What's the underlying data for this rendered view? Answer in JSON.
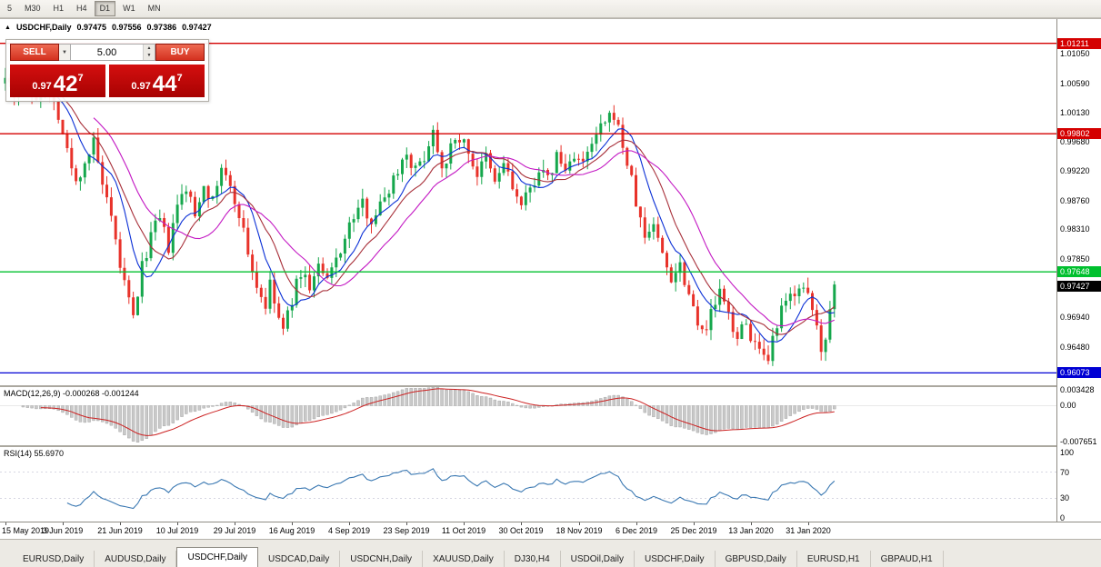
{
  "toolbar": {
    "periods": [
      {
        "label": "5",
        "active": false
      },
      {
        "label": "M30",
        "active": false
      },
      {
        "label": "H1",
        "active": false
      },
      {
        "label": "H4",
        "active": false
      },
      {
        "label": "D1",
        "active": true
      },
      {
        "label": "W1",
        "active": false
      },
      {
        "label": "MN",
        "active": false
      }
    ]
  },
  "chart": {
    "header": {
      "collapse_icon": "▲",
      "symbol": "USDCHF,Daily",
      "open": "0.97475",
      "high": "0.97556",
      "low": "0.97386",
      "close": "0.97427"
    }
  },
  "trade": {
    "sell_label": "SELL",
    "buy_label": "BUY",
    "volume": "5.00",
    "sell_price": {
      "prefix": "0.97",
      "big": "42",
      "sup": "7"
    },
    "buy_price": {
      "prefix": "0.97",
      "big": "44",
      "sup": "7"
    }
  },
  "indicators": {
    "macd": {
      "label": "MACD(12,26,9) -0.000268 -0.001244",
      "ticks": [
        {
          "v": 0.003428,
          "label": "0.003428"
        },
        {
          "v": 0,
          "label": "0.00"
        },
        {
          "v": -0.007651,
          "label": "-0.007651"
        }
      ]
    },
    "rsi": {
      "label": "RSI(14) 55.6970",
      "ticks": [
        {
          "v": 100,
          "label": "100"
        },
        {
          "v": 70,
          "label": "70"
        },
        {
          "v": 30,
          "label": "30"
        },
        {
          "v": 0,
          "label": "0"
        }
      ],
      "levels": [
        70,
        30
      ]
    }
  },
  "chart_data": {
    "type": "candlestick",
    "symbol": "USDCHF",
    "timeframe": "Daily",
    "ohlc_current": {
      "open": 0.97475,
      "high": 0.97556,
      "low": 0.97386,
      "close": 0.97427
    },
    "price_top": 1.0159,
    "price_bottom": 0.9588,
    "num_candles": 189,
    "bars_per_label": 13,
    "seed": 7,
    "x_labels": [
      "15 May 2019",
      "3 Jun 2019",
      "21 Jun 2019",
      "10 Jul 2019",
      "29 Jul 2019",
      "16 Aug 2019",
      "4 Sep 2019",
      "23 Sep 2019",
      "11 Oct 2019",
      "30 Oct 2019",
      "18 Nov 2019",
      "6 Dec 2019",
      "25 Dec 2019",
      "13 Jan 2020",
      "31 Jan 2020"
    ],
    "y_ticks": [
      {
        "v": 1.0105,
        "label": "1.01050"
      },
      {
        "v": 1.0059,
        "label": "1.00590"
      },
      {
        "v": 1.0013,
        "label": "1.00130"
      },
      {
        "v": 0.9968,
        "label": "0.99680"
      },
      {
        "v": 0.9922,
        "label": "0.99220"
      },
      {
        "v": 0.9876,
        "label": "0.98760"
      },
      {
        "v": 0.9831,
        "label": "0.98310"
      },
      {
        "v": 0.9785,
        "label": "0.97850"
      },
      {
        "v": 0.9694,
        "label": "0.96940"
      },
      {
        "v": 0.9648,
        "label": "0.96480"
      }
    ],
    "hlines": [
      {
        "value": 1.01211,
        "label": "1.01211",
        "color": "#d40000"
      },
      {
        "value": 0.99802,
        "label": "0.99802",
        "color": "#d40000"
      },
      {
        "value": 0.97648,
        "label": "0.97648",
        "color": "#00c02e"
      },
      {
        "value": 0.96073,
        "label": "0.96073",
        "color": "#0000d4"
      }
    ],
    "current_price": {
      "value": 0.97427,
      "label": "0.97427",
      "color": "#000000"
    },
    "anchors": [
      [
        0,
        1.0078
      ],
      [
        2,
        1.0042
      ],
      [
        4,
        1.0066
      ],
      [
        6,
        1.003
      ],
      [
        9,
        1.0058
      ],
      [
        12,
        1.0012
      ],
      [
        14,
        0.9952
      ],
      [
        16,
        0.9902
      ],
      [
        18,
        0.9938
      ],
      [
        20,
        0.9965
      ],
      [
        22,
        0.99
      ],
      [
        24,
        0.9842
      ],
      [
        26,
        0.9775
      ],
      [
        28,
        0.9718
      ],
      [
        29,
        0.9692
      ],
      [
        31,
        0.9772
      ],
      [
        33,
        0.9822
      ],
      [
        35,
        0.9846
      ],
      [
        37,
        0.9802
      ],
      [
        39,
        0.9866
      ],
      [
        41,
        0.9896
      ],
      [
        43,
        0.9852
      ],
      [
        45,
        0.9906
      ],
      [
        47,
        0.9872
      ],
      [
        49,
        0.993
      ],
      [
        51,
        0.9892
      ],
      [
        53,
        0.9858
      ],
      [
        55,
        0.9795
      ],
      [
        57,
        0.9742
      ],
      [
        59,
        0.9712
      ],
      [
        60,
        0.9742
      ],
      [
        62,
        0.9692
      ],
      [
        63,
        0.9672
      ],
      [
        65,
        0.9722
      ],
      [
        67,
        0.9766
      ],
      [
        69,
        0.9742
      ],
      [
        71,
        0.9772
      ],
      [
        73,
        0.9748
      ],
      [
        75,
        0.9786
      ],
      [
        77,
        0.9816
      ],
      [
        79,
        0.9852
      ],
      [
        81,
        0.987
      ],
      [
        83,
        0.9848
      ],
      [
        85,
        0.9868
      ],
      [
        87,
        0.9896
      ],
      [
        89,
        0.9926
      ],
      [
        91,
        0.9952
      ],
      [
        93,
        0.9922
      ],
      [
        95,
        0.9946
      ],
      [
        97,
        0.9986
      ],
      [
        99,
        0.9932
      ],
      [
        101,
        0.9956
      ],
      [
        103,
        0.9976
      ],
      [
        105,
        0.9952
      ],
      [
        107,
        0.9916
      ],
      [
        109,
        0.9942
      ],
      [
        111,
        0.9902
      ],
      [
        113,
        0.9936
      ],
      [
        115,
        0.9896
      ],
      [
        117,
        0.9866
      ],
      [
        119,
        0.9892
      ],
      [
        121,
        0.9926
      ],
      [
        123,
        0.9906
      ],
      [
        125,
        0.9946
      ],
      [
        127,
        0.9922
      ],
      [
        129,
        0.995
      ],
      [
        131,
        0.993
      ],
      [
        133,
        0.9962
      ],
      [
        135,
        0.9988
      ],
      [
        137,
        1.0002
      ],
      [
        138,
        1.0012
      ],
      [
        140,
        0.9962
      ],
      [
        142,
        0.9906
      ],
      [
        143,
        0.9872
      ],
      [
        145,
        0.9818
      ],
      [
        147,
        0.9842
      ],
      [
        149,
        0.9792
      ],
      [
        151,
        0.9756
      ],
      [
        153,
        0.9778
      ],
      [
        155,
        0.9732
      ],
      [
        157,
        0.9692
      ],
      [
        159,
        0.9668
      ],
      [
        160,
        0.9702
      ],
      [
        162,
        0.9732
      ],
      [
        164,
        0.9696
      ],
      [
        166,
        0.9666
      ],
      [
        168,
        0.9682
      ],
      [
        170,
        0.9652
      ],
      [
        172,
        0.9626
      ],
      [
        173,
        0.9616
      ],
      [
        174,
        0.9656
      ],
      [
        176,
        0.9702
      ],
      [
        178,
        0.9726
      ],
      [
        180,
        0.9746
      ],
      [
        182,
        0.9722
      ],
      [
        184,
        0.9682
      ],
      [
        185,
        0.9636
      ],
      [
        186,
        0.9668
      ],
      [
        187,
        0.9716
      ],
      [
        188,
        0.9742
      ]
    ],
    "moving_averages": [
      {
        "period": 8,
        "color": "#0a2fd6"
      },
      {
        "period": 13,
        "color": "#a8303a"
      },
      {
        "period": 21,
        "color": "#c318c3"
      }
    ],
    "colors": {
      "bull": "#15a74c",
      "bear": "#e8322a",
      "macd_hist": "#c9c9c9",
      "macd_hist_border": "#9a9a9a",
      "macd_signal": "#cc2222",
      "rsi": "#3a78b2",
      "rsi_levels": "#c9c9d8"
    },
    "macd_range": {
      "top": 0.004,
      "bottom": -0.0085
    },
    "rsi_range": {
      "top": 100,
      "bottom": 0
    }
  },
  "tabs": [
    {
      "label": "EURUSD,Daily",
      "active": false
    },
    {
      "label": "AUDUSD,Daily",
      "active": false
    },
    {
      "label": "USDCHF,Daily",
      "active": true
    },
    {
      "label": "USDCAD,Daily",
      "active": false
    },
    {
      "label": "USDCNH,Daily",
      "active": false
    },
    {
      "label": "XAUUSD,Daily",
      "active": false
    },
    {
      "label": "DJ30,H4",
      "active": false
    },
    {
      "label": "USDOil,Daily",
      "active": false
    },
    {
      "label": "USDCHF,Daily",
      "active": false
    },
    {
      "label": "GBPUSD,Daily",
      "active": false
    },
    {
      "label": "EURUSD,H1",
      "active": false
    },
    {
      "label": "GBPAUD,H1",
      "active": false
    }
  ]
}
